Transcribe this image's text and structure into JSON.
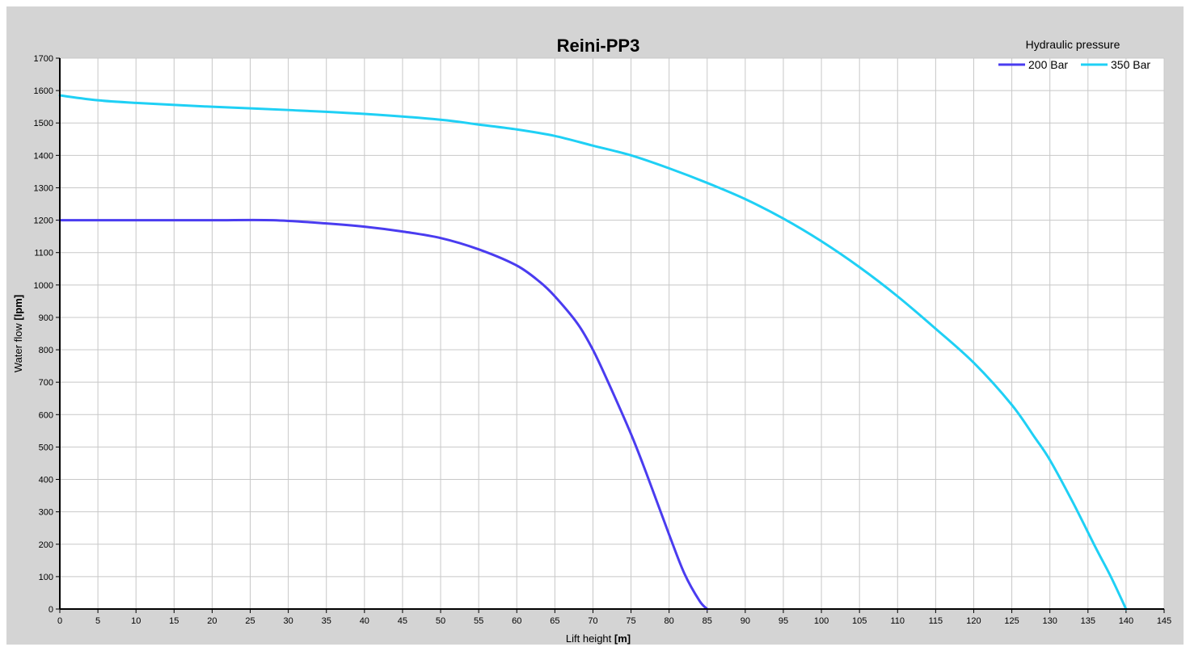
{
  "chart_data": {
    "type": "line",
    "title": "Reini-PP3",
    "xlabel": "Lift height",
    "xunit": "[m]",
    "ylabel": "Water flow",
    "yunit": "[lpm]",
    "xlim": [
      0,
      145
    ],
    "ylim": [
      0,
      1700
    ],
    "xticks": [
      0,
      5,
      10,
      15,
      20,
      25,
      30,
      35,
      40,
      45,
      50,
      55,
      60,
      65,
      70,
      75,
      80,
      85,
      90,
      95,
      100,
      105,
      110,
      115,
      120,
      125,
      130,
      135,
      140,
      145
    ],
    "yticks": [
      0,
      100,
      200,
      300,
      400,
      500,
      600,
      700,
      800,
      900,
      1000,
      1100,
      1200,
      1300,
      1400,
      1500,
      1600,
      1700
    ],
    "grid": true,
    "legend_title": "Hydraulic pressure",
    "legend_position": "top-right",
    "series": [
      {
        "name": "200 Bar",
        "color": "#4a3cf0",
        "x": [
          0,
          10,
          20,
          28,
          35,
          40,
          45,
          50,
          55,
          60,
          63,
          65,
          68,
          70,
          72,
          75,
          77,
          80,
          82,
          84,
          85
        ],
        "y": [
          1200,
          1200,
          1200,
          1200,
          1190,
          1180,
          1165,
          1145,
          1110,
          1060,
          1010,
          965,
          880,
          800,
          700,
          540,
          420,
          230,
          110,
          25,
          0
        ]
      },
      {
        "name": "350 Bar",
        "color": "#1fd0f5",
        "x": [
          0,
          5,
          10,
          20,
          30,
          40,
          50,
          55,
          60,
          65,
          70,
          75,
          80,
          85,
          90,
          95,
          100,
          105,
          110,
          115,
          120,
          125,
          128,
          130,
          133,
          136,
          138,
          140
        ],
        "y": [
          1585,
          1570,
          1562,
          1550,
          1540,
          1528,
          1510,
          1495,
          1480,
          1460,
          1430,
          1400,
          1360,
          1315,
          1265,
          1205,
          1135,
          1055,
          965,
          865,
          760,
          630,
          530,
          460,
          330,
          190,
          100,
          0
        ]
      }
    ]
  }
}
